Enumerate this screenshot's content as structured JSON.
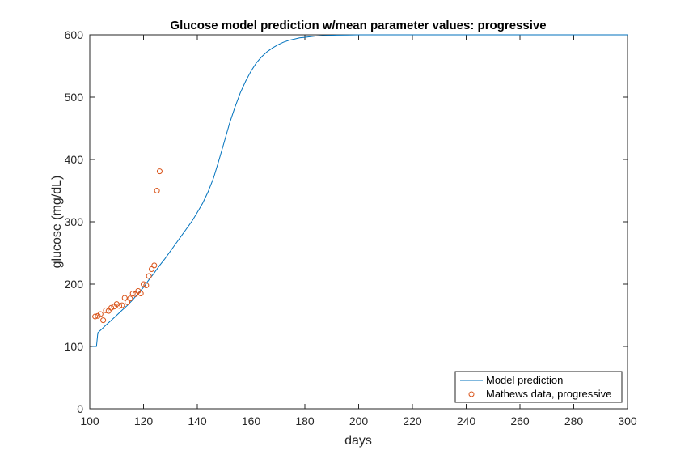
{
  "chart_data": {
    "type": "line",
    "title": "Glucose model prediction w/mean parameter values: progressive",
    "xlabel": "days",
    "ylabel": "glucose (mg/dL)",
    "xlim": [
      100,
      300
    ],
    "ylim": [
      0,
      600
    ],
    "xticks": [
      "100",
      "120",
      "140",
      "160",
      "180",
      "200",
      "220",
      "240",
      "260",
      "280",
      "300"
    ],
    "yticks": [
      "0",
      "100",
      "200",
      "300",
      "400",
      "500",
      "600"
    ],
    "grid": false,
    "legend_position": "bottom-right",
    "series": [
      {
        "name": "Model prediction",
        "kind": "line",
        "color": "#0072BD",
        "x": [
          101,
          102.5,
          103,
          104,
          106,
          108,
          110,
          112,
          114,
          116,
          118,
          120,
          122,
          124,
          126,
          128,
          130,
          132,
          134,
          136,
          138,
          140,
          142,
          144,
          146,
          148,
          150,
          152,
          154,
          156,
          158,
          160,
          162,
          164,
          166,
          168,
          170,
          172,
          174,
          176,
          178,
          180,
          184,
          188,
          192,
          196,
          200,
          205,
          210,
          220,
          230,
          240,
          260,
          280,
          300
        ],
        "y": [
          100,
          100,
          122,
          126,
          134,
          142,
          150,
          158,
          166,
          175,
          185,
          195,
          207,
          218,
          230,
          241,
          253,
          265,
          277,
          289,
          301,
          315,
          330,
          348,
          370,
          398,
          428,
          458,
          484,
          507,
          526,
          542,
          555,
          565,
          573,
          579,
          584,
          588,
          591,
          593,
          595,
          596,
          598,
          599,
          599.5,
          599.8,
          600,
          600,
          600,
          600,
          600,
          600,
          600,
          600,
          600
        ]
      },
      {
        "name": "Mathews data, progressive",
        "kind": "scatter",
        "color": "#D95319",
        "x": [
          102,
          103,
          104,
          105,
          106,
          107,
          108,
          109,
          110,
          111,
          112,
          113,
          114,
          115,
          116,
          117,
          118,
          119,
          120,
          121,
          122,
          123,
          124,
          125,
          126
        ],
        "y": [
          148,
          149,
          152,
          142,
          158,
          157,
          162,
          164,
          168,
          165,
          166,
          178,
          171,
          177,
          185,
          184,
          189,
          185,
          200,
          198,
          213,
          224,
          230,
          350,
          381
        ]
      }
    ]
  }
}
